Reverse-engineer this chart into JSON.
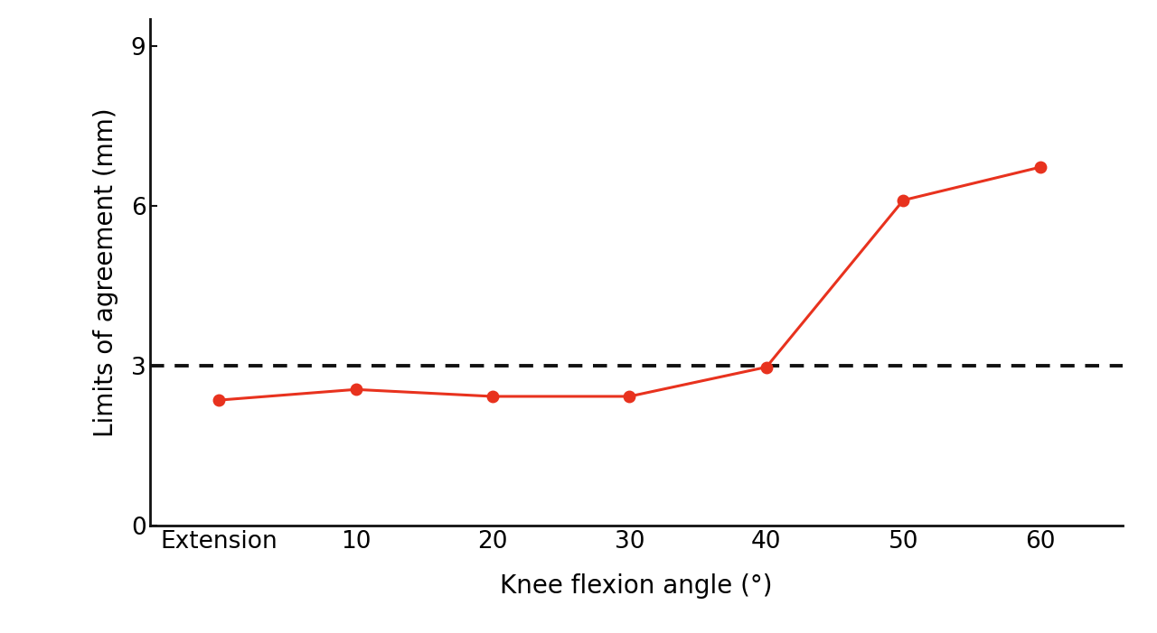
{
  "x_labels": [
    "Extension",
    "10",
    "20",
    "30",
    "40",
    "50",
    "60"
  ],
  "x_values": [
    0,
    1,
    2,
    3,
    4,
    5,
    6
  ],
  "y_values": [
    2.35,
    2.55,
    2.42,
    2.42,
    2.97,
    6.1,
    6.72
  ],
  "line_color": "#E8321E",
  "marker_color": "#E8321E",
  "dashed_line_y": 3.0,
  "dashed_line_color": "#111111",
  "ylabel": "Limits of agreement (mm)",
  "xlabel": "Knee flexion angle (°)",
  "ylim": [
    0,
    9.5
  ],
  "yticks": [
    0,
    3,
    6,
    9
  ],
  "background_color": "#ffffff",
  "marker_size": 9,
  "line_width": 2.2,
  "dashed_linewidth": 2.8,
  "ylabel_fontsize": 20,
  "xlabel_fontsize": 20,
  "tick_fontsize": 19
}
